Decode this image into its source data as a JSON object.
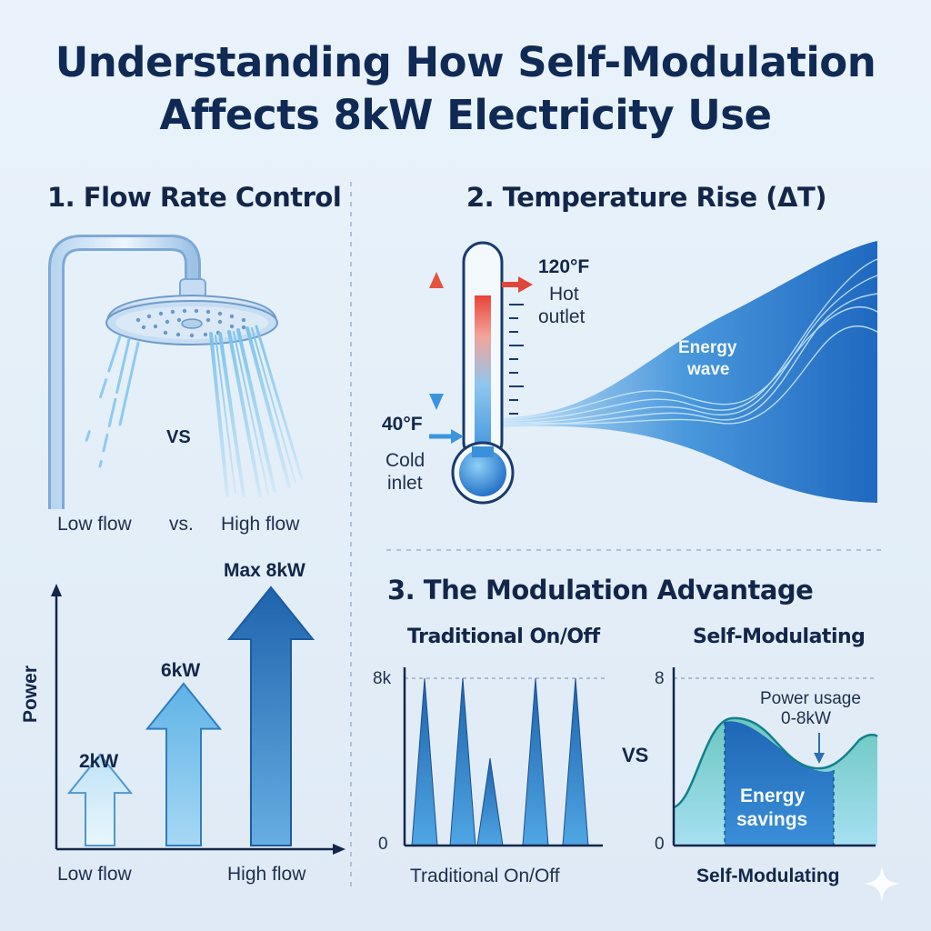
{
  "title": {
    "line1": "Understanding How Self-Modulation",
    "line2": "Affects 8kW Electricity Use"
  },
  "section1": {
    "heading": "1. Flow Rate Control",
    "vs_center": "VS",
    "low_flow_label": "Low flow",
    "vs_small": "vs.",
    "high_flow_label": "High flow",
    "chart": {
      "ylabel": "Power",
      "arrows": [
        "2kW",
        "6kW",
        "Max 8kW"
      ],
      "xlabel_left": "Low flow",
      "xlabel_right": "High flow"
    }
  },
  "section2": {
    "heading": "2. Temperature Rise (ΔT)",
    "hot_temp": "120°F",
    "hot_label_1": "Hot",
    "hot_label_2": "outlet",
    "cold_temp": "40°F",
    "cold_label_1": "Cold",
    "cold_label_2": "inlet",
    "wave_label_1": "Energy",
    "wave_label_2": "wave"
  },
  "section3": {
    "heading": "3. The Modulation Advantage",
    "left_title": "Traditional On/Off",
    "left_ymax": "8k",
    "left_ymin": "0",
    "left_xlabel": "Traditional On/Off",
    "vs": "VS",
    "right_title": "Self-Modulating",
    "right_ymax": "8",
    "right_ymin": "0",
    "right_xlabel": "Self-Modulating",
    "callout_1": "Power usage",
    "callout_2": "0-8kW",
    "savings_1": "Energy",
    "savings_2": "savings"
  },
  "colors": {
    "accent": "#2f78c6",
    "dark": "#102a55",
    "hot": "#e0463a"
  }
}
